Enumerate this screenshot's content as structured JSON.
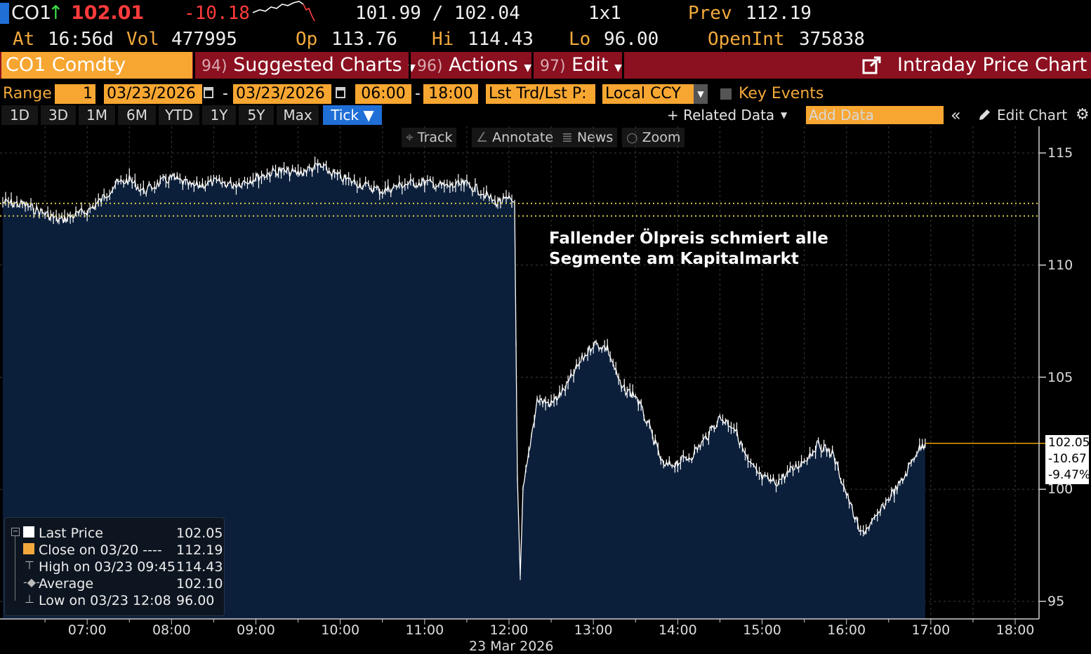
{
  "header": {
    "ticker": "CO1",
    "arrow": "↑",
    "last": "102.01",
    "change": "-10.18",
    "bid_ask": "101.99 / 102.04",
    "size": "1x1",
    "prev_label": "Prev",
    "prev_value": "112.19",
    "at_label": "At",
    "at_time": "16:56d",
    "vol_label": "Vol",
    "vol_value": "477995",
    "op_label": "Op",
    "op_value": "113.76",
    "hi_label": "Hi",
    "hi_value": "114.43",
    "lo_label": "Lo",
    "lo_value": "96.00",
    "openint_label": "OpenInt",
    "openint_value": "375838"
  },
  "menubar": {
    "security": "CO1 Comdty",
    "suggested_num": "94)",
    "suggested": "Suggested Charts",
    "actions_num": "96)",
    "actions": "Actions",
    "edit_num": "97)",
    "edit": "Edit",
    "title": "Intraday Price Chart"
  },
  "range_row": {
    "range_label": "Range",
    "range_value": "1",
    "start_date": "03/23/2026",
    "end_date": "03/23/2026",
    "start_time": "06:00",
    "end_time": "18:00",
    "price_type": "Lst Trd/Lst P:",
    "currency": "Local CCY",
    "key_events": "Key Events"
  },
  "period_tabs": [
    "1D",
    "3D",
    "1M",
    "6M",
    "YTD",
    "1Y",
    "5Y",
    "Max",
    "Tick ▼"
  ],
  "active_tab": "Tick ▼",
  "tools_row": {
    "related_data": "+ Related Data",
    "add_data_placeholder": "Add Data",
    "collapse": "«",
    "edit_chart": "Edit Chart"
  },
  "chart_tools": {
    "track": "Track",
    "annotate": "Annotate",
    "news": "News",
    "zoom": "Zoom"
  },
  "annotation": {
    "line1": "Fallender Ölpreis schmiert alle",
    "line2": "Segmente am Kapitalmarkt"
  },
  "legend": [
    {
      "label": "Last Price",
      "value": "102.05"
    },
    {
      "label": "Close on 03/20 ----",
      "value": "112.19"
    },
    {
      "label": "High on 03/23 09:45",
      "value": "114.43"
    },
    {
      "label": "Average",
      "value": "102.10"
    },
    {
      "label": "Low on 03/23 12:08",
      "value": "96.00"
    }
  ],
  "price_box": {
    "price": "102.05",
    "change": "-10.67",
    "pct": "-9.47%"
  },
  "chart_data": {
    "type": "area",
    "x_tick_labels": [
      "07:00",
      "08:00",
      "09:00",
      "10:00",
      "11:00",
      "12:00",
      "13:00",
      "14:00",
      "15:00",
      "16:00",
      "17:00",
      "18:00"
    ],
    "x_axis_date": "23 Mar 2026",
    "y_tick_labels": [
      "115",
      "110",
      "105",
      "100",
      "95"
    ],
    "ylim": [
      94.6,
      115.5
    ],
    "reference_lines": [
      {
        "value": 112.19,
        "style": "dotted"
      },
      {
        "value": 112.75,
        "style": "dotted"
      }
    ],
    "series": [
      {
        "values": [
          [
            "06:00",
            112.8
          ],
          [
            "06:15",
            112.7
          ],
          [
            "06:30",
            112.3
          ],
          [
            "06:40",
            112.0
          ],
          [
            "06:50",
            112.2
          ],
          [
            "07:00",
            112.4
          ],
          [
            "07:10",
            112.9
          ],
          [
            "07:20",
            113.6
          ],
          [
            "07:30",
            113.8
          ],
          [
            "07:40",
            113.3
          ],
          [
            "07:50",
            113.6
          ],
          [
            "08:00",
            113.9
          ],
          [
            "08:15",
            113.5
          ],
          [
            "08:30",
            113.7
          ],
          [
            "08:45",
            113.6
          ],
          [
            "09:00",
            113.9
          ],
          [
            "09:15",
            114.2
          ],
          [
            "09:30",
            114.1
          ],
          [
            "09:45",
            114.43
          ],
          [
            "10:00",
            113.9
          ],
          [
            "10:15",
            113.6
          ],
          [
            "10:30",
            113.3
          ],
          [
            "10:45",
            113.6
          ],
          [
            "11:00",
            113.7
          ],
          [
            "11:15",
            113.5
          ],
          [
            "11:30",
            113.6
          ],
          [
            "11:40",
            113.3
          ],
          [
            "11:50",
            112.8
          ],
          [
            "12:00",
            112.9
          ],
          [
            "12:04",
            112.8
          ],
          [
            "12:05",
            106.5
          ],
          [
            "12:06",
            100.3
          ],
          [
            "12:08",
            96.0
          ],
          [
            "12:10",
            99.9
          ],
          [
            "12:15",
            102.0
          ],
          [
            "12:20",
            104.0
          ],
          [
            "12:30",
            103.8
          ],
          [
            "12:40",
            104.5
          ],
          [
            "12:50",
            105.6
          ],
          [
            "13:00",
            106.5
          ],
          [
            "13:10",
            106.3
          ],
          [
            "13:20",
            104.5
          ],
          [
            "13:30",
            104.2
          ],
          [
            "13:40",
            102.7
          ],
          [
            "13:50",
            101.0
          ],
          [
            "14:00",
            101.2
          ],
          [
            "14:10",
            101.5
          ],
          [
            "14:20",
            102.3
          ],
          [
            "14:30",
            103.2
          ],
          [
            "14:40",
            102.8
          ],
          [
            "14:50",
            101.2
          ],
          [
            "15:00",
            100.5
          ],
          [
            "15:10",
            100.3
          ],
          [
            "15:20",
            100.8
          ],
          [
            "15:30",
            101.3
          ],
          [
            "15:40",
            102.0
          ],
          [
            "15:50",
            101.6
          ],
          [
            "16:00",
            99.8
          ],
          [
            "16:10",
            98.0
          ],
          [
            "16:20",
            98.6
          ],
          [
            "16:30",
            99.6
          ],
          [
            "16:40",
            100.4
          ],
          [
            "16:50",
            101.7
          ],
          [
            "16:56",
            102.05
          ]
        ]
      }
    ]
  },
  "colors": {
    "amber": "#f2a93b",
    "orange_field": "#f7a631",
    "menubar_red": "#8b1020",
    "area_fill": "#0c1f3a",
    "price_line": "#ffffff",
    "reference_line": "#d6c84a",
    "last_price_line": "#e8a200",
    "down_red": "#ff3b3b",
    "tab_active": "#1f6fd6"
  }
}
